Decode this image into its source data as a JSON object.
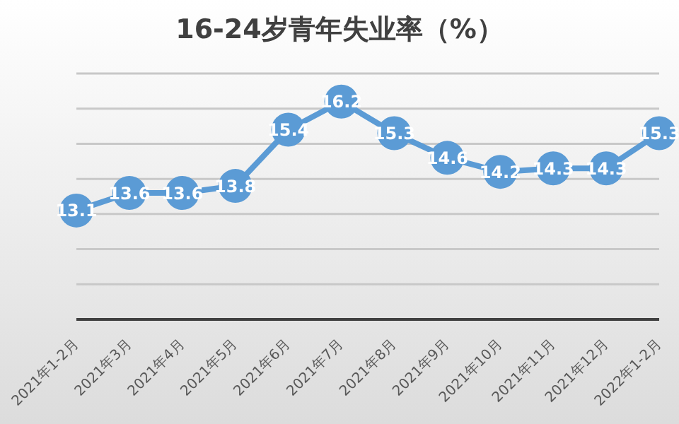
{
  "chart_data": {
    "type": "line",
    "title": "16-24岁青年失业率（%）",
    "categories": [
      "2021年1-2月",
      "2021年3月",
      "2021年4月",
      "2021年5月",
      "2021年6月",
      "2021年7月",
      "2021年8月",
      "2021年9月",
      "2021年10月",
      "2021年11月",
      "2021年12月",
      "2022年1-2月"
    ],
    "series": [
      {
        "color": "#5b9bd5",
        "values": [
          13.1,
          13.6,
          13.6,
          13.8,
          15.4,
          16.2,
          15.3,
          14.6,
          14.2,
          14.3,
          14.3,
          15.3
        ]
      }
    ],
    "ylim": [
      10,
      17
    ],
    "tick_labels": "x",
    "grid": "y",
    "legend": false,
    "marker": "circle",
    "line_style": "solid",
    "data_labels": true
  }
}
